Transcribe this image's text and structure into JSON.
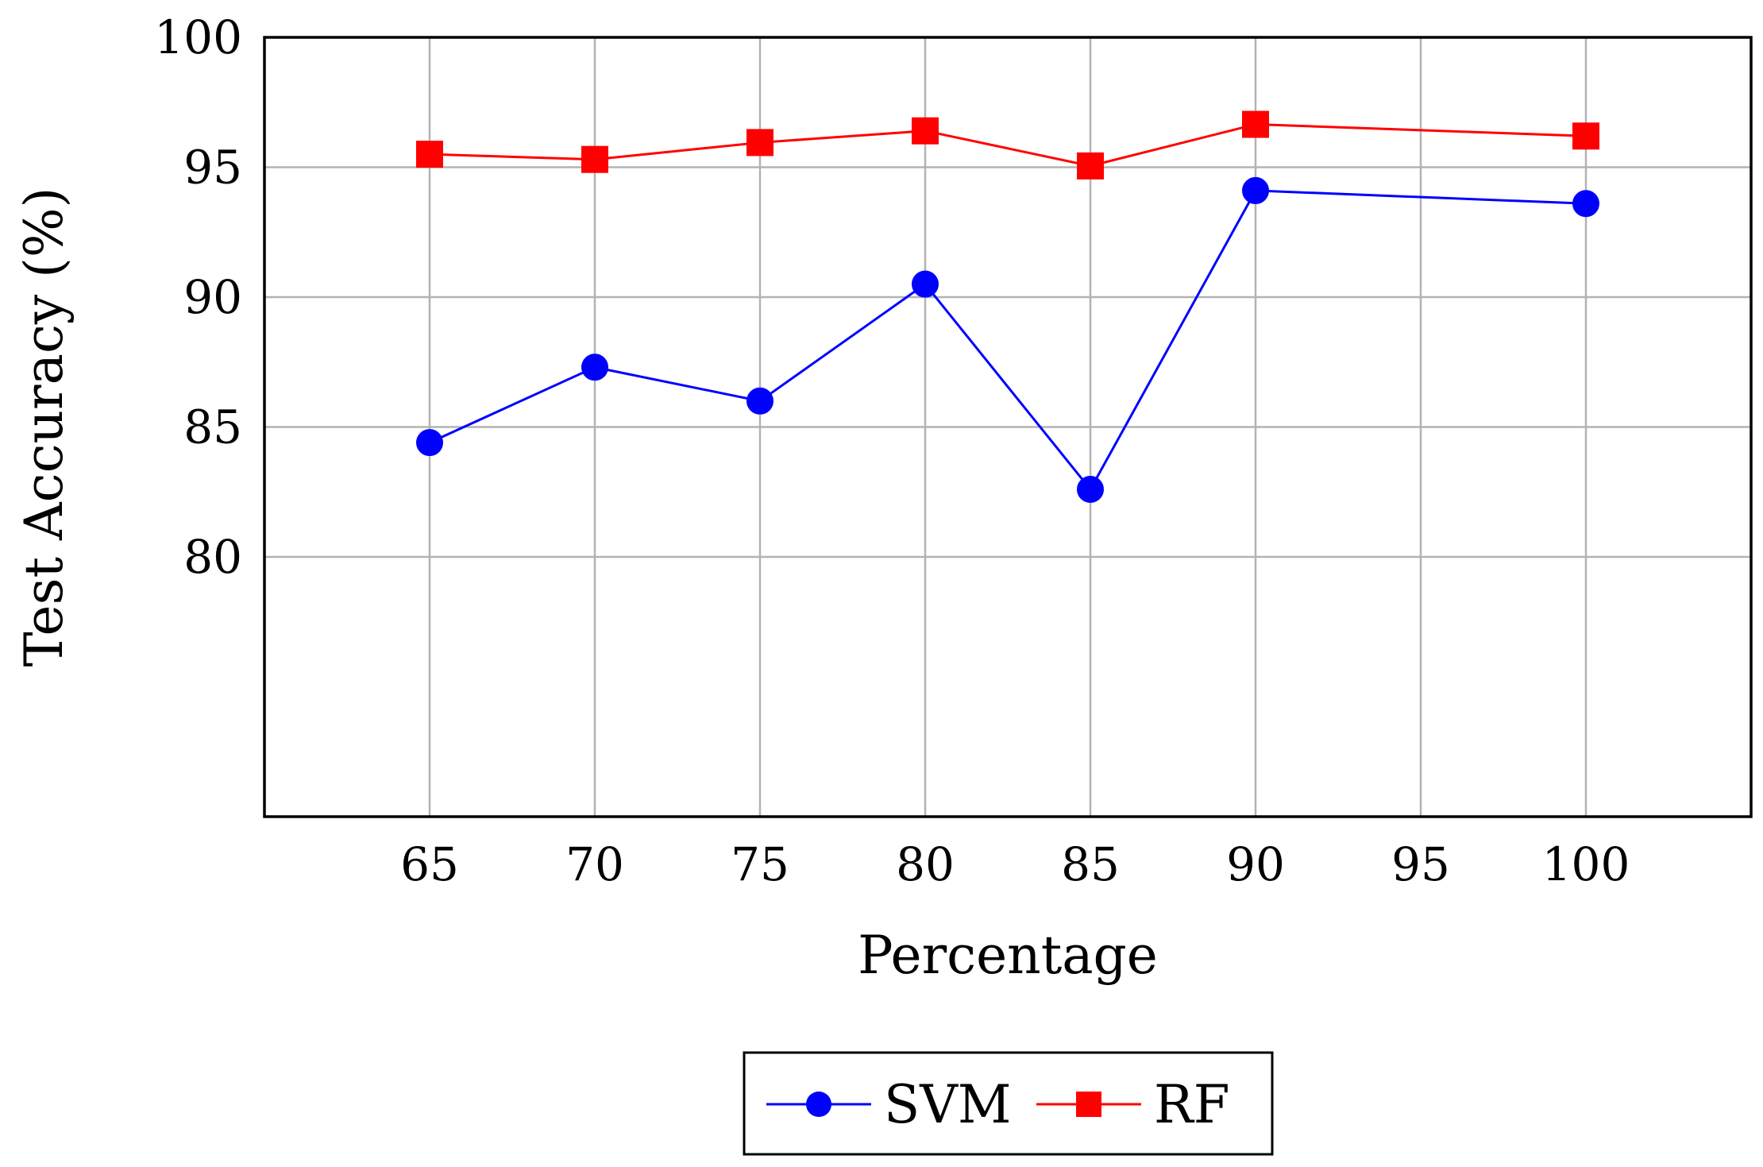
{
  "chart_data": {
    "type": "line",
    "title": "",
    "xlabel": "Percentage",
    "ylabel": "Test Accuracy (%)",
    "xlim": [
      60,
      105
    ],
    "ylim": [
      70,
      100
    ],
    "x_ticks": [
      65,
      70,
      75,
      80,
      85,
      90,
      95,
      100
    ],
    "y_ticks": [
      80,
      85,
      90,
      95,
      100
    ],
    "grid": true,
    "legend_position": "bottom-center",
    "series": [
      {
        "name": "SVM",
        "color": "#0000ff",
        "marker": "circle",
        "x": [
          65,
          70,
          75,
          80,
          85,
          90,
          100
        ],
        "values": [
          84.4,
          87.3,
          86.0,
          90.5,
          82.6,
          94.1,
          93.6
        ]
      },
      {
        "name": "RF",
        "color": "#ff0000",
        "marker": "square",
        "x": [
          65,
          70,
          75,
          80,
          85,
          90,
          100
        ],
        "values": [
          95.5,
          95.3,
          95.95,
          96.4,
          95.05,
          96.65,
          96.2
        ]
      }
    ]
  }
}
